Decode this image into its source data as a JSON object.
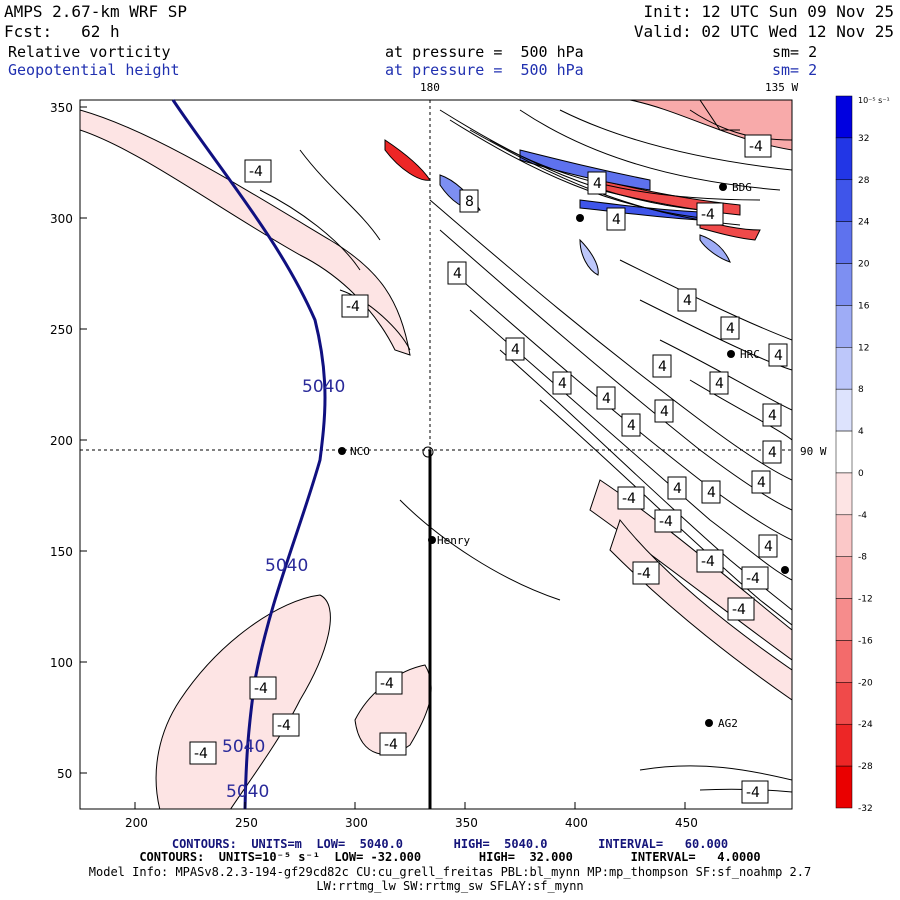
{
  "header": {
    "model": "AMPS 2.67-km WRF SP",
    "fcst": "Fcst:   62 h",
    "init": "Init: 12 UTC Sun 09 Nov 25",
    "valid": "Valid: 02 UTC Wed 12 Nov 25",
    "field1": "Relative vorticity",
    "field2": "Geopotential height",
    "pressure1": "at pressure =  500 hPa",
    "pressure2": "at pressure =  500 hPa",
    "sm1": "sm= 2",
    "sm2": "sm= 2",
    "lon_180": "180",
    "lon_135": "135 W",
    "lon_90": "90 W"
  },
  "axes": {
    "x_ticks": [
      "200",
      "250",
      "300",
      "350",
      "400",
      "450"
    ],
    "y_ticks": [
      "350",
      "300",
      "250",
      "200",
      "150",
      "100",
      "50"
    ]
  },
  "colorbar": {
    "unit": "10⁻⁵ s⁻¹",
    "labels": [
      "32",
      "28",
      "24",
      "20",
      "16",
      "12",
      "8",
      "4",
      "0",
      "-4",
      "-8",
      "-12",
      "-16",
      "-20",
      "-24",
      "-28",
      "-32"
    ],
    "colors": [
      "#0000e0",
      "#2236e6",
      "#3f55ea",
      "#5e72ee",
      "#7d8ff2",
      "#9eacf6",
      "#bdc7fa",
      "#dde3fd",
      "#ffffff",
      "#fde4e4",
      "#fbc8c8",
      "#f8aaaa",
      "#f68c8c",
      "#f36b6b",
      "#f04a4a",
      "#ed2626",
      "#ea0000"
    ]
  },
  "stations": {
    "bdg": "BDG",
    "hrc": "HRC",
    "nco": "NCO",
    "henry": "Henry",
    "ag2": "AG2"
  },
  "contour_labels": {
    "height_5040": "5040",
    "vort_4": "4",
    "vort_8": "8",
    "vort_neg4": "-4"
  },
  "footer": {
    "line1": "CONTOURS:  UNITS=m  LOW=  5040.0       HIGH=  5040.0       INTERVAL=   60.000",
    "line2": "CONTOURS:  UNITS=10⁻⁵ s⁻¹  LOW= -32.000        HIGH=  32.000        INTERVAL=   4.0000",
    "line3": "Model Info: MPASv8.2.3-194-gf29cd82c CU:cu_grell_freitas PBL:bl_mynn MP:mp_thompson SF:sf_noahmp 2.7",
    "line4": "LW:rrtmg_lw SW:rrtmg_sw SFLAY:sf_mynn"
  }
}
